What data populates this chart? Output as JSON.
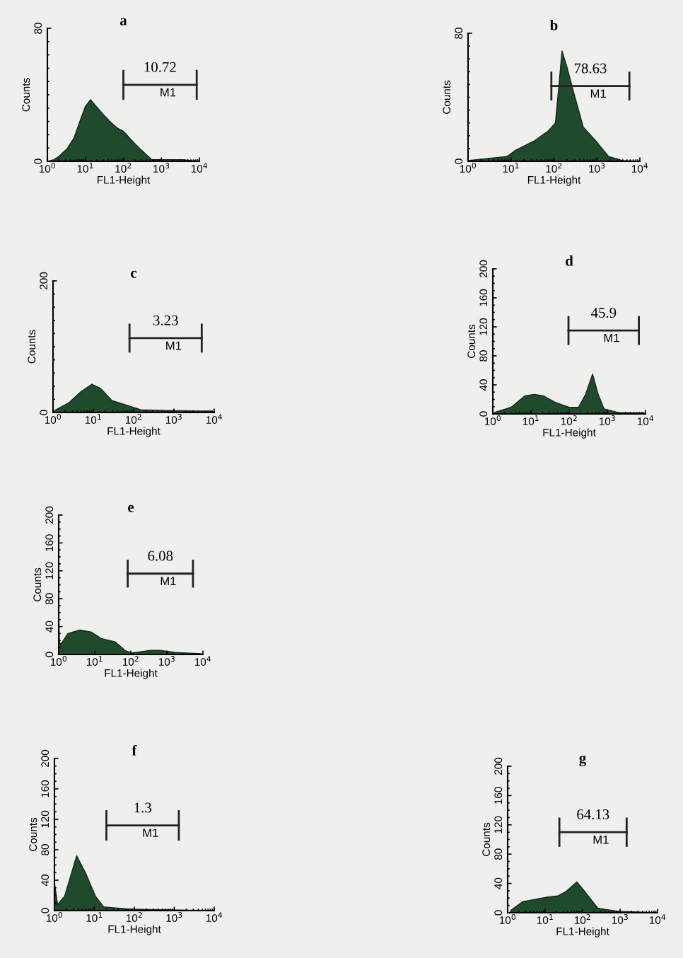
{
  "chart_data": [
    {
      "type": "area",
      "title": "a",
      "xlabel": "FL1-Height",
      "ylabel": "Counts",
      "log": "x",
      "xlim": [
        1,
        10000
      ],
      "xticks": [
        {
          "value": 1,
          "label": "10$^{0}$"
        },
        {
          "value": 10,
          "label": "10$^{1}$"
        },
        {
          "value": 100,
          "label": "10$^{2}$"
        },
        {
          "value": 1000,
          "label": "10$^{3}$"
        },
        {
          "value": 10000,
          "label": "10$^{4}$"
        }
      ],
      "ylim": [
        0,
        80
      ],
      "yticks": [
        0,
        80
      ],
      "grid": false,
      "series": [
        {
          "color": "#1f4a2c",
          "x": [
            1,
            1.5,
            2,
            3.3,
            5,
            7.7,
            10,
            13.7,
            21,
            30,
            49,
            70,
            101,
            160,
            275,
            400,
            560,
            1000,
            3600,
            9000
          ],
          "values": [
            0,
            1,
            3,
            7.5,
            14,
            26,
            33,
            37,
            32,
            28,
            23,
            20,
            18,
            13,
            7.5,
            4,
            1,
            1,
            1,
            0
          ]
        },
        {
          "type": "line",
          "name": "M1",
          "color": "#222222",
          "x": [
            100,
            8500
          ],
          "values": [
            46,
            46
          ],
          "errors": [
            9,
            9
          ]
        }
      ],
      "annotations": [
        "10.72"
      ]
    },
    {
      "type": "area",
      "title": "b",
      "xlabel": "FL1-Height",
      "ylabel": "Counts",
      "log": "x",
      "xlim": [
        1,
        10000
      ],
      "xticks": [
        {
          "value": 1,
          "label": "10$^{0}$"
        },
        {
          "value": 10,
          "label": "10$^{1}$"
        },
        {
          "value": 100,
          "label": "10$^{2}$"
        },
        {
          "value": 1000,
          "label": "10$^{3}$"
        },
        {
          "value": 10000,
          "label": "10$^{4}$"
        }
      ],
      "ylim": [
        0,
        80
      ],
      "yticks": [
        0,
        80
      ],
      "grid": false,
      "series": [
        {
          "color": "#1f4a2c",
          "x": [
            1,
            8,
            13,
            36,
            74,
            108,
            131,
            154,
            200,
            295,
            480,
            1000,
            1870,
            3900,
            10000
          ],
          "values": [
            0.5,
            3,
            7,
            13,
            19,
            24,
            48,
            69,
            59,
            42,
            21.5,
            12,
            3,
            0.5,
            0
          ]
        },
        {
          "type": "line",
          "name": "M1",
          "color": "#222222",
          "x": [
            87,
            5700
          ],
          "values": [
            47,
            47
          ],
          "errors": [
            9,
            9
          ]
        }
      ],
      "annotations": [
        "78.63"
      ]
    },
    {
      "type": "area",
      "title": "c",
      "xlabel": "FL1-Height",
      "ylabel": "Counts",
      "log": "x",
      "xlim": [
        1,
        10000
      ],
      "xticks": [
        {
          "value": 1,
          "label": "10$^{0}$"
        },
        {
          "value": 10,
          "label": "10$^{1}$"
        },
        {
          "value": 100,
          "label": "10$^{2}$"
        },
        {
          "value": 1000,
          "label": "10$^{3}$"
        },
        {
          "value": 10000,
          "label": "10$^{4}$"
        }
      ],
      "ylim": [
        0,
        200
      ],
      "yticks": [
        0,
        200
      ],
      "grid": false,
      "series": [
        {
          "color": "#1f4a2c",
          "x": [
            1,
            1.1,
            2.5,
            5,
            9.2,
            14.8,
            29,
            76,
            150,
            590,
            8900,
            10000
          ],
          "values": [
            0,
            3,
            15,
            32,
            43,
            37,
            18,
            10,
            4,
            3,
            2,
            0
          ]
        },
        {
          "type": "line",
          "name": "M1",
          "color": "#222222",
          "x": [
            79,
            4900
          ],
          "values": [
            113,
            113
          ],
          "errors": [
            22,
            22
          ]
        }
      ],
      "annotations": [
        "3.23"
      ]
    },
    {
      "type": "area",
      "title": "d",
      "xlabel": "FL1-Height",
      "ylabel": "Counts",
      "log": "x",
      "xlim": [
        1,
        10000
      ],
      "xticks": [
        {
          "value": 1,
          "label": "10$^{0}$"
        },
        {
          "value": 10,
          "label": "10$^{1}$"
        },
        {
          "value": 100,
          "label": "10$^{2}$"
        },
        {
          "value": 1000,
          "label": "10$^{3}$"
        },
        {
          "value": 10000,
          "label": "10$^{4}$"
        }
      ],
      "ylim": [
        0,
        200
      ],
      "yticks": [
        0,
        40,
        80,
        120,
        160,
        200
      ],
      "grid": false,
      "series": [
        {
          "color": "#1f4a2c",
          "x": [
            1.1,
            3,
            7,
            12,
            21,
            43,
            100,
            175,
            270,
            410,
            575,
            815,
            1900,
            9000
          ],
          "values": [
            2,
            9,
            25,
            27,
            25,
            16,
            9,
            9,
            27,
            55,
            27,
            7,
            2,
            1
          ]
        },
        {
          "type": "line",
          "name": "M1",
          "color": "#222222",
          "x": [
            96,
            6700
          ],
          "values": [
            115,
            115
          ],
          "errors": [
            20,
            20
          ]
        }
      ],
      "annotations": [
        "45.9"
      ]
    },
    {
      "type": "area",
      "title": "e",
      "xlabel": "FL1-Height",
      "ylabel": "Counts",
      "log": "x",
      "xlim": [
        1,
        10000
      ],
      "xticks": [
        {
          "value": 1,
          "label": "10$^{0}$"
        },
        {
          "value": 10,
          "label": "10$^{1}$"
        },
        {
          "value": 100,
          "label": "10$^{2}$"
        },
        {
          "value": 1000,
          "label": "10$^{3}$"
        },
        {
          "value": 10000,
          "label": "10$^{4}$"
        }
      ],
      "ylim": [
        0,
        200
      ],
      "yticks": [
        0,
        40,
        80,
        120,
        160,
        200
      ],
      "grid": false,
      "series": [
        {
          "color": "#1f4a2c",
          "x": [
            1,
            1.05,
            1.2,
            1.8,
            3.9,
            8.2,
            15,
            37,
            68,
            106,
            355,
            650,
            1600,
            9000
          ],
          "values": [
            63,
            16,
            16,
            30,
            35,
            32,
            23,
            18,
            6,
            2,
            6,
            6,
            3,
            1
          ]
        },
        {
          "type": "line",
          "name": "M1",
          "color": "#222222",
          "x": [
            82,
            5300
          ],
          "values": [
            116,
            116
          ],
          "errors": [
            20,
            20
          ]
        }
      ],
      "annotations": [
        "6.08"
      ]
    },
    {
      "type": "area",
      "title": "f",
      "xlabel": "FL1-Height",
      "ylabel": "Counts",
      "log": "x",
      "xlim": [
        1,
        10000
      ],
      "xticks": [
        {
          "value": 1,
          "label": "10$^{0}$"
        },
        {
          "value": 10,
          "label": "10$^{1}$"
        },
        {
          "value": 100,
          "label": "10$^{2}$"
        },
        {
          "value": 1000,
          "label": "10$^{3}$"
        },
        {
          "value": 10000,
          "label": "10$^{4}$"
        }
      ],
      "ylim": [
        0,
        200
      ],
      "yticks": [
        0,
        40,
        80,
        120,
        160,
        200
      ],
      "grid": false,
      "series": [
        {
          "color": "#1f4a2c",
          "x": [
            1,
            1.2,
            1.8,
            3.6,
            6.2,
            10.6,
            17,
            74,
            9000
          ],
          "values": [
            37,
            8,
            19,
            72,
            48,
            19,
            5,
            2,
            0
          ]
        },
        {
          "type": "line",
          "name": "M1",
          "color": "#222222",
          "x": [
            20,
            1300
          ],
          "values": [
            112,
            112
          ],
          "errors": [
            20,
            20
          ]
        }
      ],
      "annotations": [
        "1.3"
      ]
    },
    {
      "type": "area",
      "title": "g",
      "xlabel": "FL1-Height",
      "ylabel": "Counts",
      "log": "x",
      "xlim": [
        1,
        10000
      ],
      "xticks": [
        {
          "value": 1,
          "label": "10$^{0}$"
        },
        {
          "value": 10,
          "label": "10$^{1}$"
        },
        {
          "value": 100,
          "label": "10$^{2}$"
        },
        {
          "value": 1000,
          "label": "10$^{3}$"
        },
        {
          "value": 10000,
          "label": "10$^{4}$"
        }
      ],
      "ylim": [
        0,
        200
      ],
      "yticks": [
        0,
        40,
        80,
        120,
        160,
        200
      ],
      "grid": false,
      "series": [
        {
          "color": "#1f4a2c",
          "x": [
            1.2,
            2.5,
            5.1,
            10.7,
            22,
            36,
            70,
            123,
            255,
            860,
            10000
          ],
          "values": [
            3,
            15,
            18,
            21,
            23,
            29,
            42,
            27,
            6,
            2,
            0
          ]
        },
        {
          "type": "line",
          "name": "M1",
          "color": "#222222",
          "x": [
            24,
            1500
          ],
          "values": [
            110,
            110
          ],
          "errors": [
            20,
            20
          ]
        }
      ],
      "annotations": [
        "64.13"
      ]
    }
  ]
}
